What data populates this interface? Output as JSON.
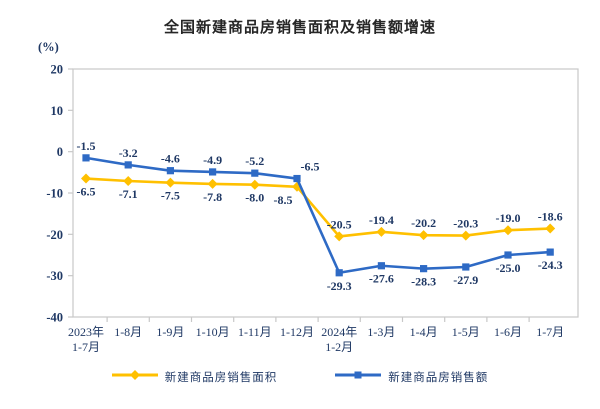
{
  "title": "全国新建商品房销售面积及销售额增速",
  "chart_data": {
    "type": "line",
    "title": "全国新建商品房销售面积及销售额增速",
    "xlabel": "",
    "ylabel": "(%)",
    "ylim": [
      -40,
      20
    ],
    "yticks": [
      20,
      10,
      0,
      -10,
      -20,
      -30,
      -40
    ],
    "grid": false,
    "legend_position": "bottom",
    "categories": [
      "2023年\n1-7月",
      "1-8月",
      "1-9月",
      "1-10月",
      "1-11月",
      "1-12月",
      "2024年\n1-2月",
      "1-3月",
      "1-4月",
      "1-5月",
      "1-6月",
      "1-7月"
    ],
    "series": [
      {
        "name": "新建商品房销售面积",
        "marker": "diamond",
        "color": "#FFC000",
        "values": [
          -6.5,
          -7.1,
          -7.5,
          -7.8,
          -8.0,
          -8.5,
          -20.5,
          -19.4,
          -20.2,
          -20.3,
          -19.0,
          -18.6
        ]
      },
      {
        "name": "新建商品房销售额",
        "marker": "square",
        "color": "#2E6AC5",
        "values": [
          -1.5,
          -3.2,
          -4.6,
          -4.9,
          -5.2,
          -6.5,
          -29.3,
          -27.6,
          -28.3,
          -27.9,
          -25.0,
          -24.3
        ]
      }
    ]
  },
  "colors": {
    "axis": "#C8C8C8",
    "tick_text": "#1F3864",
    "title_text": "#262626",
    "background": "#FFFFFF"
  }
}
